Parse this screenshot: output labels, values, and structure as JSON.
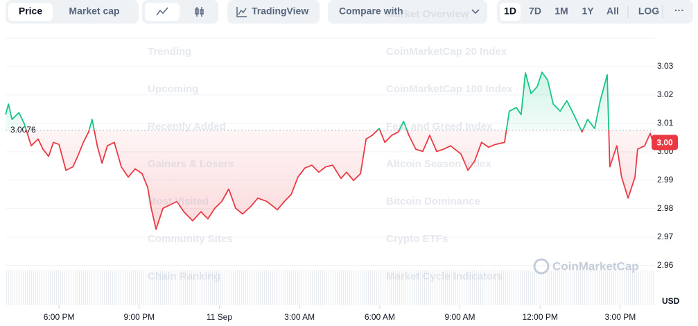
{
  "toolbar": {
    "tabs": [
      "Price",
      "Market cap"
    ],
    "tradingview": "TradingView",
    "compare": "Compare with",
    "ranges": [
      "1D",
      "7D",
      "1M",
      "1Y",
      "All"
    ],
    "log": "LOG",
    "more": "···"
  },
  "overlay_menu": {
    "left": [
      "Trending",
      "Upcoming",
      "Recently Added",
      "Gainers & Losers",
      "Most Visited",
      "Community Sites",
      "Chain Ranking"
    ],
    "right": [
      "Market Overview",
      "CoinMarketCap 20 Index",
      "CoinMarketCap 100 Index",
      "Fear and Greed Index",
      "Altcoin Season Index",
      "Bitcoin Dominance",
      "Crypto ETFs",
      "Market Cycle Indicators"
    ]
  },
  "chart_data": {
    "type": "line",
    "unit": "USD",
    "watermark": "CoinMarketCap",
    "reference": {
      "value": 3.0076,
      "label": "3.0076"
    },
    "price_label": "3.00",
    "up_color": "#16c784",
    "down_color": "#ea3943",
    "x": [
      -2.0,
      -1.89,
      -1.76,
      -1.5,
      -1.3,
      -1.04,
      -0.78,
      -0.6,
      -0.39,
      -0.21,
      0,
      0.26,
      0.52,
      0.7,
      0.91,
      1.11,
      1.24,
      1.43,
      1.61,
      1.81,
      2.07,
      2.33,
      2.59,
      2.85,
      3.11,
      3.32,
      3.45,
      3.63,
      3.89,
      4.15,
      4.41,
      4.67,
      5.0,
      5.31,
      5.57,
      5.83,
      6.09,
      6.35,
      6.61,
      6.87,
      7.18,
      7.44,
      7.78,
      8.17,
      8.43,
      8.69,
      8.94,
      9.2,
      9.46,
      9.72,
      9.98,
      10.24,
      10.55,
      10.76,
      11.02,
      11.28,
      11.49,
      11.72,
      11.98,
      12.19,
      12.45,
      12.7,
      12.89,
      13.09,
      13.35,
      13.61,
      13.87,
      14.13,
      14.39,
      14.65,
      15.04,
      15.3,
      15.55,
      15.81,
      16.07,
      16.33,
      16.67,
      16.85,
      17.11,
      17.29,
      17.45,
      17.66,
      17.89,
      18.07,
      18.28,
      18.49,
      18.75,
      19.0,
      19.26,
      19.57,
      19.78,
      20.04,
      20.25,
      20.51,
      20.61,
      20.87,
      21.05,
      21.29,
      21.55,
      21.65,
      21.91,
      22.12,
      22.22
    ],
    "values": [
      3.0131,
      3.0168,
      3.0114,
      3.0138,
      3.0099,
      3.0021,
      3.0045,
      3.0009,
      2.9984,
      3.0033,
      3.0026,
      2.9935,
      2.9947,
      2.9984,
      3.0033,
      3.007,
      3.0114,
      3.0021,
      2.996,
      3.0021,
      3.0033,
      2.9947,
      2.9911,
      2.994,
      2.9923,
      2.9874,
      2.9801,
      2.9727,
      2.9801,
      2.9813,
      2.9825,
      2.9789,
      2.9757,
      2.9789,
      2.9764,
      2.9801,
      2.9825,
      2.9869,
      2.9801,
      2.9781,
      2.9808,
      2.9837,
      2.9825,
      2.9796,
      2.9825,
      2.985,
      2.9911,
      2.9943,
      2.9953,
      2.9928,
      2.9947,
      2.9953,
      2.9906,
      2.9928,
      2.9899,
      2.9923,
      3.0045,
      3.0058,
      3.0082,
      3.0033,
      3.0058,
      3.007,
      3.0107,
      3.0058,
      3.0009,
      3.0001,
      3.0058,
      3.0001,
      3.0009,
      3.0021,
      2.9992,
      2.9935,
      2.9967,
      3.0033,
      3.0016,
      3.0026,
      3.0033,
      3.0143,
      3.0156,
      3.0131,
      3.0278,
      3.0205,
      3.0229,
      3.028,
      3.0253,
      3.0168,
      3.0143,
      3.018,
      3.0131,
      3.007,
      3.0114,
      3.0082,
      3.018,
      3.0271,
      2.9947,
      3.0021,
      2.9911,
      2.9837,
      2.9911,
      3.0009,
      3.0021,
      3.0065,
      3.0033
    ],
    "xlim": [
      -2.0,
      22.3
    ],
    "xticks": [
      {
        "value": 0,
        "label": "6:00 PM"
      },
      {
        "value": 3,
        "label": "9:00 PM"
      },
      {
        "value": 6,
        "label": "11 Sep"
      },
      {
        "value": 9,
        "label": "3:00 AM"
      },
      {
        "value": 12,
        "label": "6:00 AM"
      },
      {
        "value": 15,
        "label": "9:00 AM"
      },
      {
        "value": 18,
        "label": "12:00 PM"
      },
      {
        "value": 21,
        "label": "3:00 PM"
      }
    ],
    "ylim": [
      2.946,
      3.04
    ],
    "yticks": [
      {
        "value": 2.96,
        "label": "2.96"
      },
      {
        "value": 2.97,
        "label": "2.97"
      },
      {
        "value": 2.98,
        "label": "2.98"
      },
      {
        "value": 2.99,
        "label": "2.99"
      },
      {
        "value": 3.0,
        "label": "3.00"
      },
      {
        "value": 3.01,
        "label": "3.01"
      },
      {
        "value": 3.02,
        "label": "3.02"
      },
      {
        "value": 3.03,
        "label": "3.03"
      }
    ],
    "grid": true
  }
}
